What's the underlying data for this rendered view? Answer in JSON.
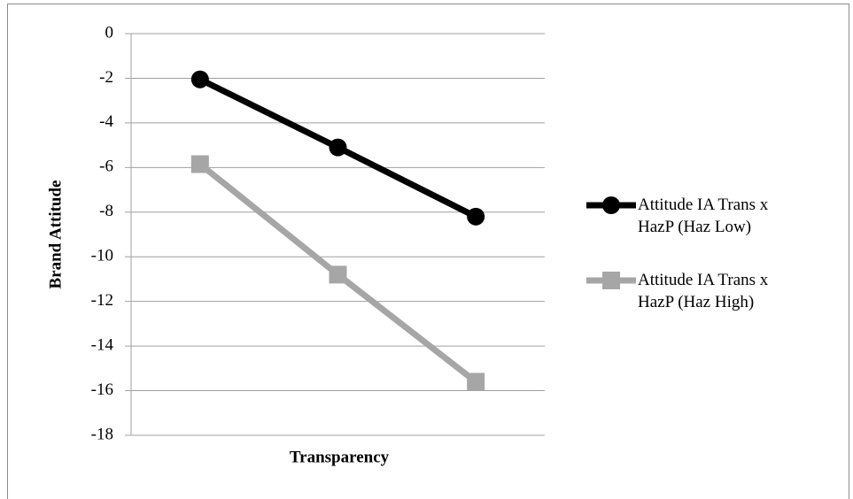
{
  "chart_data": {
    "type": "line",
    "x_label": "Transparency",
    "y_label": "Brand Attitude",
    "categories": [
      null,
      null,
      null
    ],
    "series": [
      {
        "name": "Attitude IA Trans x HazP (Haz Low)",
        "color": "#000000",
        "marker": "circle",
        "values": [
          -2.05,
          -5.1,
          -8.2
        ]
      },
      {
        "name": "Attitude IA Trans x HazP (Haz High)",
        "color": "#a6a6a6",
        "marker": "square",
        "values": [
          -5.85,
          -10.8,
          -15.6
        ]
      }
    ],
    "ylim": [
      -18,
      0
    ],
    "yticks": [
      0,
      -2,
      -4,
      -6,
      -8,
      -10,
      -12,
      -14,
      -16,
      -18
    ],
    "grid": true,
    "legend": "right"
  }
}
